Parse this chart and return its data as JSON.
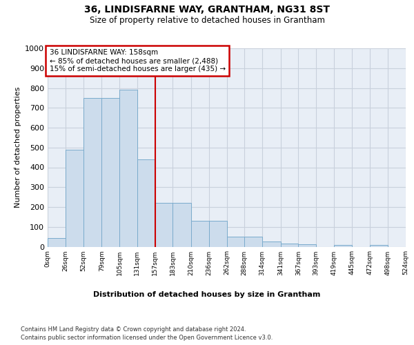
{
  "title": "36, LINDISFARNE WAY, GRANTHAM, NG31 8ST",
  "subtitle": "Size of property relative to detached houses in Grantham",
  "xlabel": "Distribution of detached houses by size in Grantham",
  "ylabel": "Number of detached properties",
  "bar_color": "#ccdcec",
  "bar_edge_color": "#7aabcc",
  "bin_edges": [
    0,
    26,
    52,
    79,
    105,
    131,
    157,
    183,
    210,
    236,
    262,
    288,
    314,
    341,
    367,
    393,
    419,
    445,
    472,
    498,
    524
  ],
  "bin_labels": [
    "0sqm",
    "26sqm",
    "52sqm",
    "79sqm",
    "105sqm",
    "131sqm",
    "157sqm",
    "183sqm",
    "210sqm",
    "236sqm",
    "262sqm",
    "288sqm",
    "314sqm",
    "341sqm",
    "367sqm",
    "393sqm",
    "419sqm",
    "445sqm",
    "472sqm",
    "498sqm",
    "524sqm"
  ],
  "bar_values": [
    42,
    490,
    750,
    750,
    790,
    440,
    220,
    220,
    130,
    130,
    50,
    50,
    27,
    15,
    11,
    0,
    8,
    0,
    8,
    0
  ],
  "ylim": [
    0,
    1000
  ],
  "yticks": [
    0,
    100,
    200,
    300,
    400,
    500,
    600,
    700,
    800,
    900,
    1000
  ],
  "vline_x": 157,
  "annotation_text": "36 LINDISFARNE WAY: 158sqm\n← 85% of detached houses are smaller (2,488)\n15% of semi-detached houses are larger (435) →",
  "annotation_box_facecolor": "#ffffff",
  "annotation_box_edgecolor": "#cc0000",
  "vline_color": "#cc0000",
  "footer_line1": "Contains HM Land Registry data © Crown copyright and database right 2024.",
  "footer_line2": "Contains public sector information licensed under the Open Government Licence v3.0.",
  "grid_color": "#c8d0dc",
  "plot_bg_color": "#e8eef6"
}
